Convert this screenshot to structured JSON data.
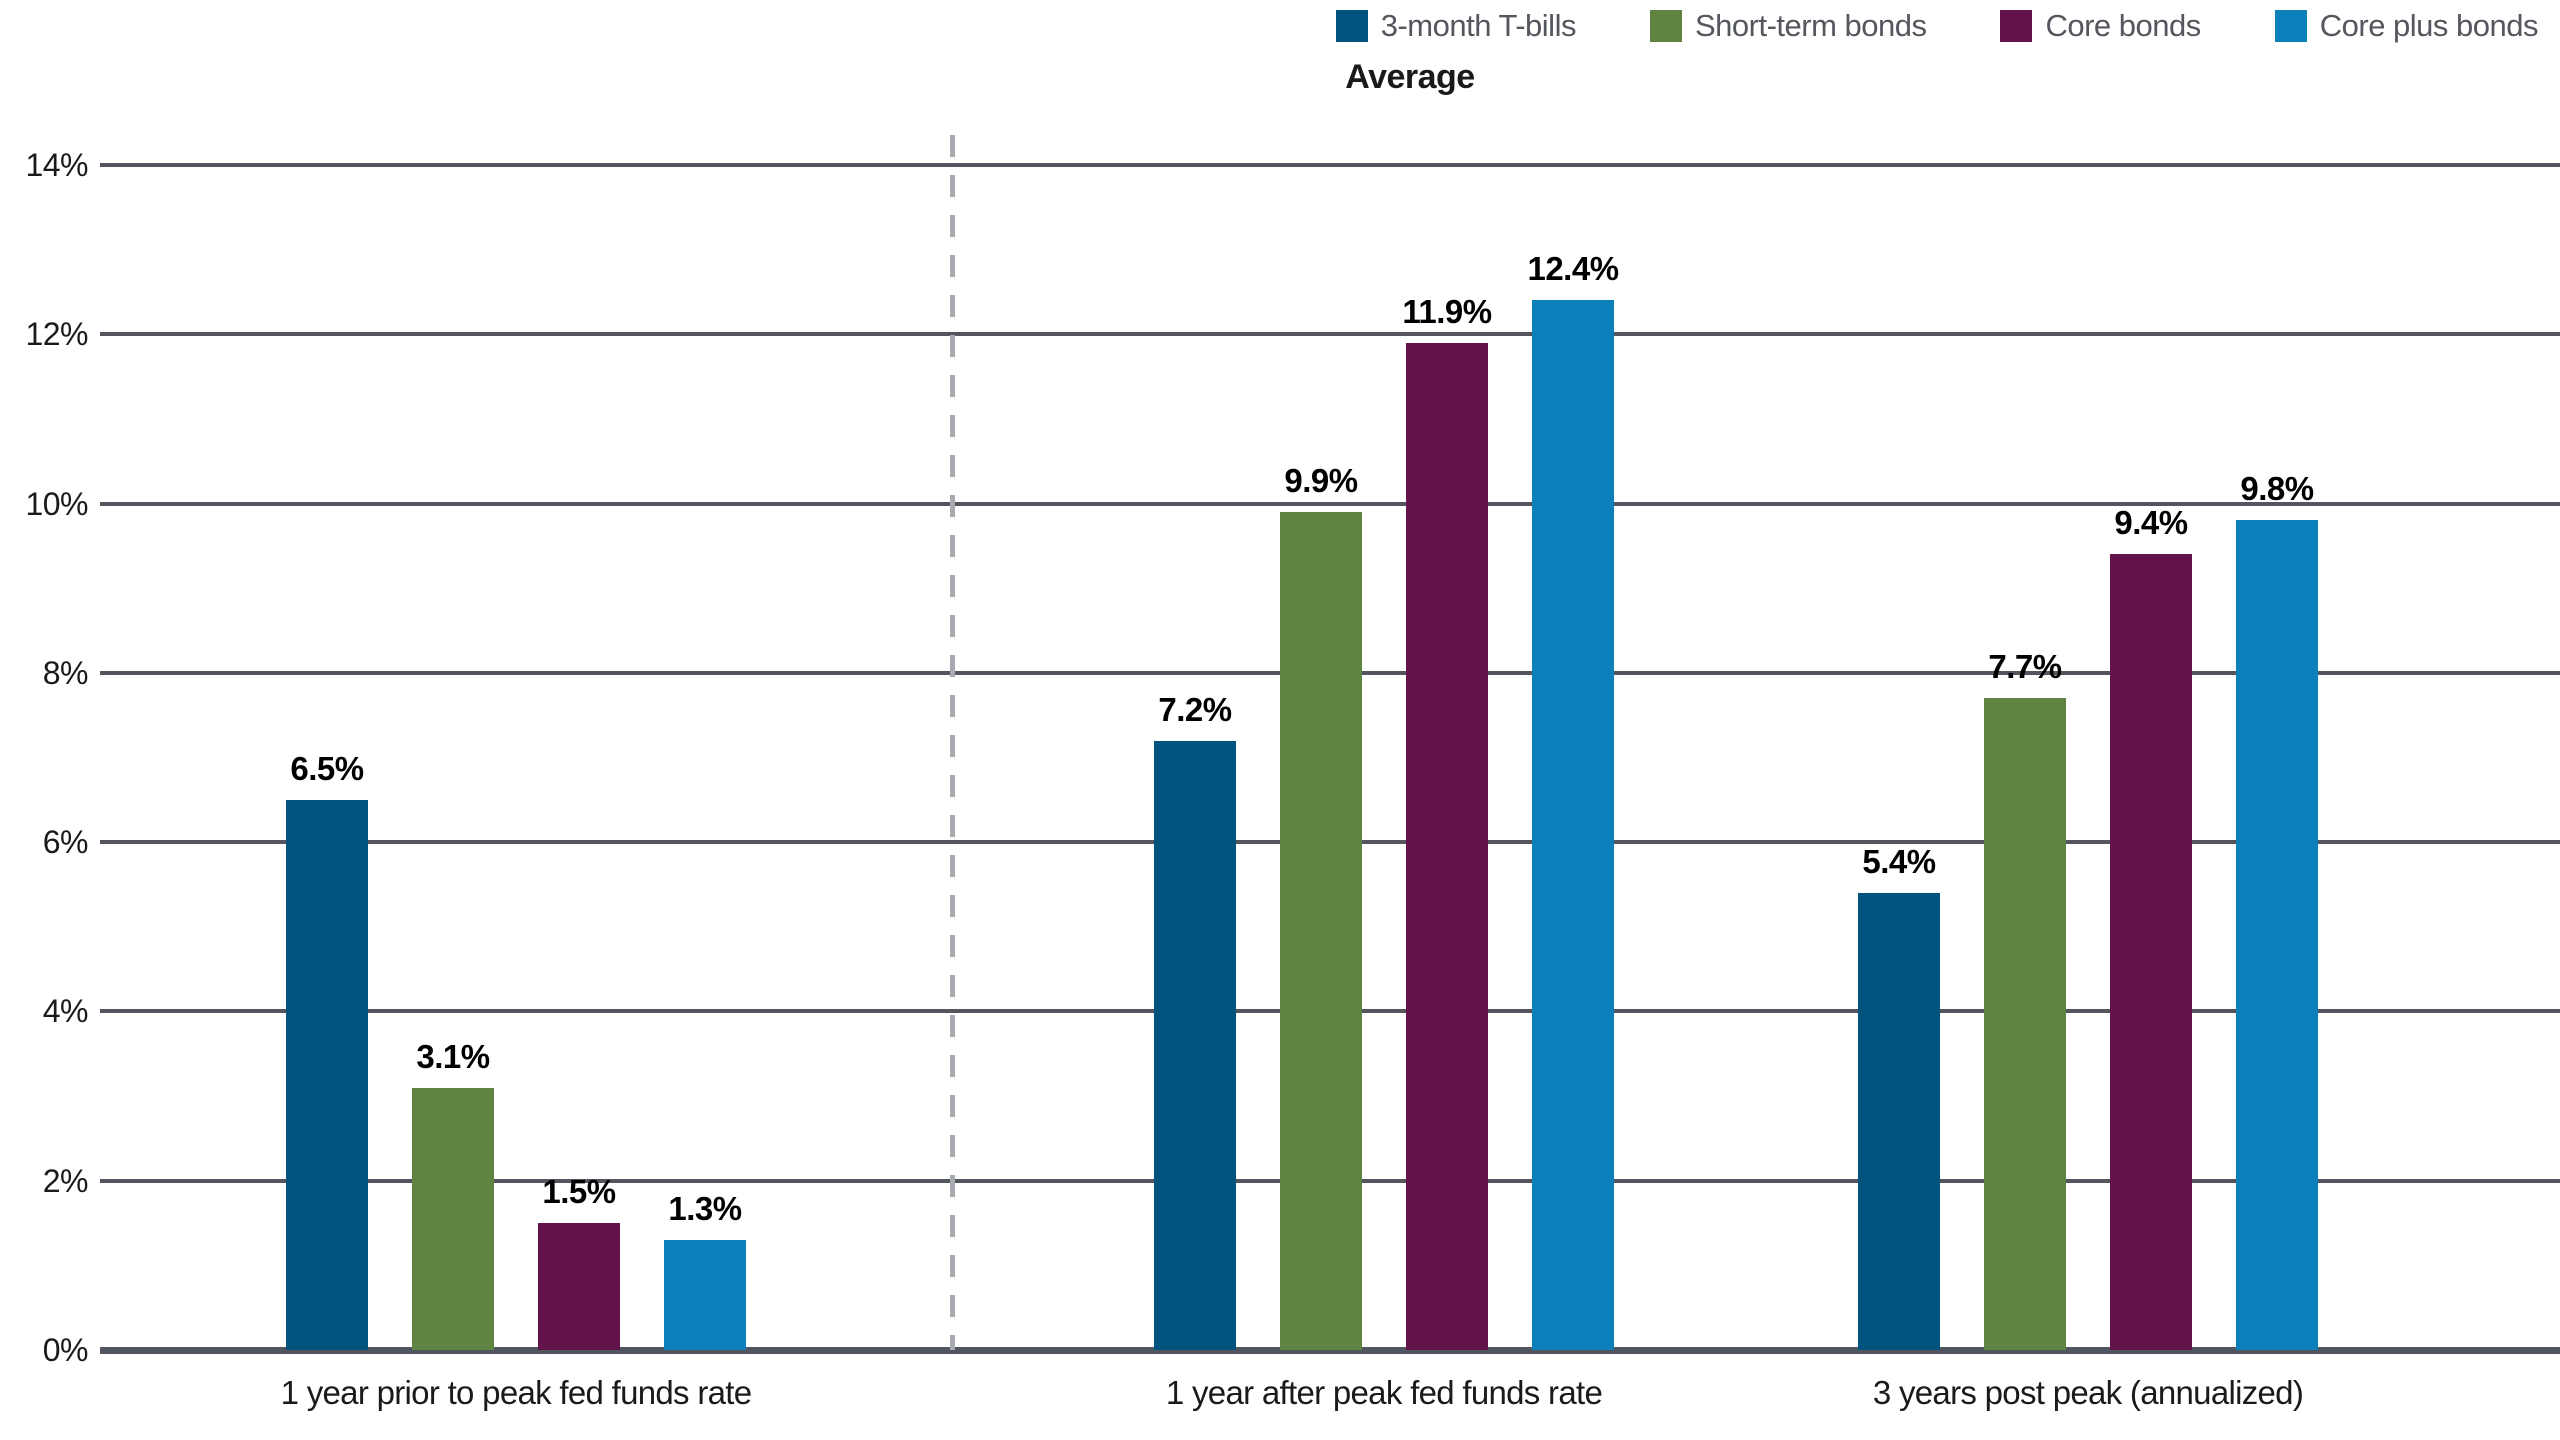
{
  "chart_data": {
    "type": "bar",
    "title": "Average",
    "categories": [
      "1 year prior to peak fed funds rate",
      "1 year after peak fed funds rate",
      "3 years post peak (annualized)"
    ],
    "series": [
      {
        "name": "3-month T-bills",
        "color": "#00547e",
        "values": [
          6.5,
          7.2,
          5.4
        ],
        "labels": [
          "6.5%",
          "7.2%",
          "5.4%"
        ]
      },
      {
        "name": "Short-term bonds",
        "color": "#5f8441",
        "values": [
          3.1,
          9.9,
          7.7
        ],
        "labels": [
          "3.1%",
          "9.9%",
          "7.7%"
        ]
      },
      {
        "name": "Core bonds",
        "color": "#621349",
        "values": [
          1.5,
          11.9,
          9.4
        ],
        "labels": [
          "1.5%",
          "11.9%",
          "9.4%"
        ]
      },
      {
        "name": "Core plus bonds",
        "color": "#0b80bb",
        "values": [
          1.3,
          12.4,
          9.8
        ],
        "labels": [
          "1.3%",
          "12.4%",
          "9.8%"
        ]
      }
    ],
    "y_axis": {
      "min": 0,
      "max": 14,
      "tick_step": 2,
      "tick_labels": [
        "0%",
        "2%",
        "4%",
        "6%",
        "8%",
        "10%",
        "12%",
        "14%"
      ]
    },
    "grid": true,
    "legend_position": "top-right",
    "separator_after_category_index": 0,
    "colors": {
      "gridline": "#53565e",
      "axis": "#515560",
      "separator": "#a7aab0",
      "legend_text": "#54575e",
      "label_text": "#000000"
    }
  }
}
